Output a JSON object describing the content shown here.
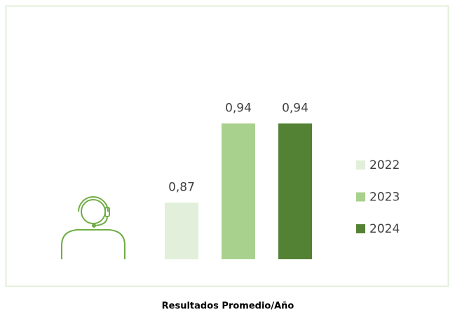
{
  "chart_data": {
    "type": "bar",
    "title": "Resultados Promedio/Año",
    "series": [
      {
        "name": "2022",
        "color": "#e2efda",
        "values": [
          0.87
        ],
        "value_labels": [
          "0,87"
        ]
      },
      {
        "name": "2023",
        "color": "#a9d18e",
        "values": [
          0.94
        ],
        "value_labels": [
          "0,94"
        ]
      },
      {
        "name": "2024",
        "color": "#548235",
        "values": [
          0.94
        ],
        "value_labels": [
          "0,94"
        ]
      }
    ],
    "ylim": [
      0.82,
      0.96
    ]
  }
}
